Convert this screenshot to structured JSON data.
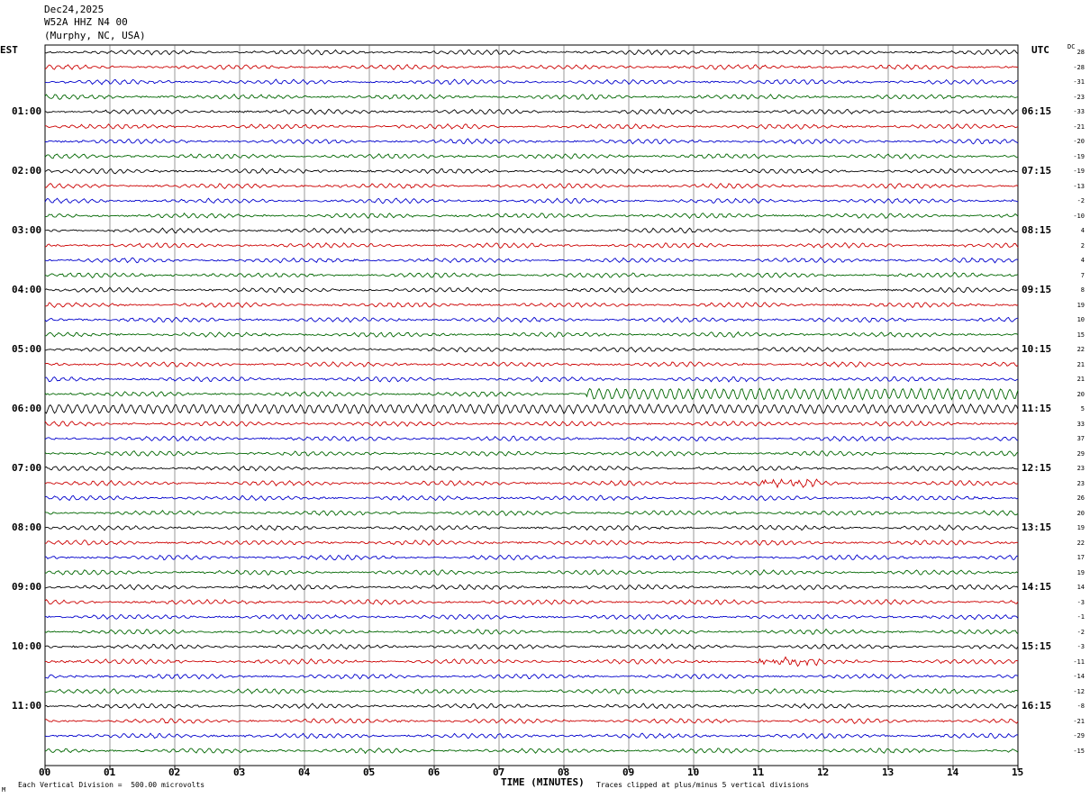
{
  "header": {
    "date": "Dec24,2025",
    "station": "W52A HHZ N4 00",
    "location": "(Murphy, NC, USA)"
  },
  "left_axis_label": "EST",
  "right_axis_label": "UTC",
  "dc_label": "DC",
  "footer": {
    "scale_note": "Each Vertical Division =  500.00 microvolts",
    "clip_note": "Traces clipped at plus/minus 5 vertical divisions",
    "corner_mark": "M"
  },
  "chart_data": {
    "type": "line",
    "title": "",
    "xlabel": "TIME (MINUTES)",
    "ylabel": "",
    "x_ticks": [
      "00",
      "01",
      "02",
      "03",
      "04",
      "05",
      "06",
      "07",
      "08",
      "09",
      "10",
      "11",
      "12",
      "13",
      "14",
      "15"
    ],
    "xlim": [
      0,
      15
    ],
    "grid": true,
    "trace_colors": [
      "#000000",
      "#cc0000",
      "#0000cc",
      "#006600"
    ],
    "est_hours": [
      "01:00",
      "02:00",
      "03:00",
      "04:00",
      "05:00",
      "06:00",
      "07:00",
      "08:00",
      "09:00",
      "10:00",
      "11:00"
    ],
    "utc_hours": [
      "06:15",
      "07:15",
      "08:15",
      "09:15",
      "10:15",
      "11:15",
      "12:15",
      "13:15",
      "14:15",
      "15:15",
      "16:15"
    ],
    "dc_offsets": [
      28,
      -28,
      -31,
      -23,
      -33,
      -21,
      -20,
      -19,
      -19,
      -13,
      -2,
      -10,
      4,
      2,
      4,
      7,
      8,
      19,
      10,
      15,
      22,
      21,
      21,
      20,
      5,
      33,
      37,
      29,
      23,
      23,
      26,
      20,
      19,
      22,
      17,
      19,
      14,
      -3,
      -1,
      -2,
      -3,
      -11,
      -14,
      -12,
      -8,
      -21,
      -29,
      -15
    ],
    "trace_count": 48
  }
}
